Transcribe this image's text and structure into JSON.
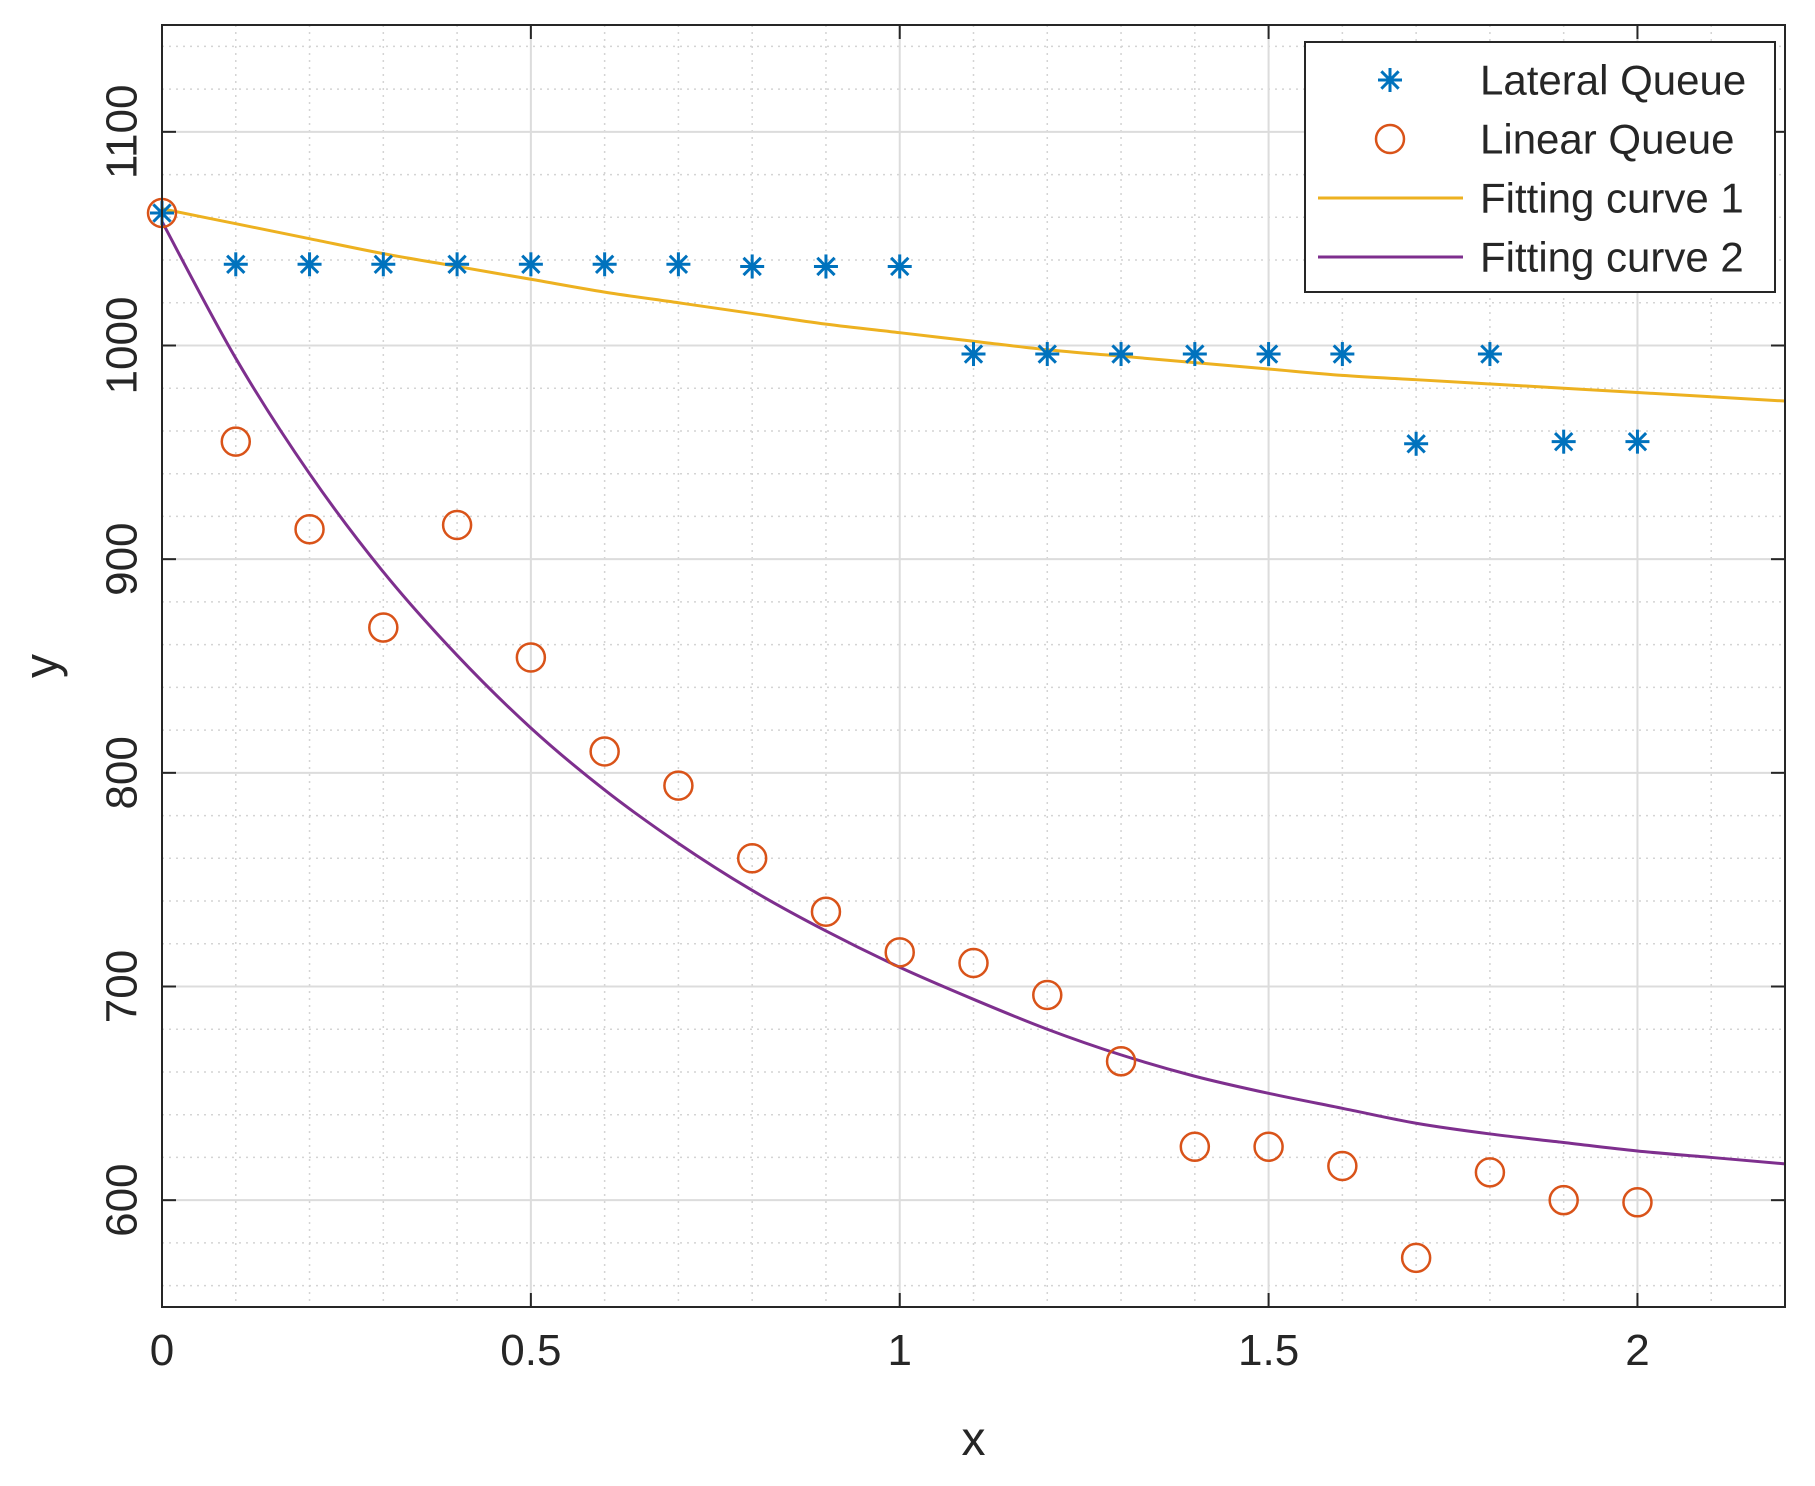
{
  "chart_data": {
    "type": "scatter",
    "title": "",
    "xlabel": "x",
    "ylabel": "y",
    "xlim": [
      0,
      2.2
    ],
    "ylim": [
      550,
      1150
    ],
    "grid": true,
    "minor_grid": true,
    "legend_position": "top-right",
    "x_ticks": [
      0,
      0.5,
      1,
      1.5,
      2
    ],
    "x_tick_labels": [
      "0",
      "0.5",
      "1",
      "1.5",
      "2"
    ],
    "y_ticks": [
      600,
      700,
      800,
      900,
      1000,
      1100
    ],
    "y_tick_labels": [
      "600",
      "700",
      "800",
      "900",
      "1000",
      "1100"
    ],
    "colors": {
      "lateral": "#0072BD",
      "linear": "#D95319",
      "fit1": "#EDB120",
      "fit2": "#7E2F8E"
    },
    "series": [
      {
        "name": "Lateral Queue",
        "kind": "scatter",
        "marker": "asterisk",
        "x": [
          0,
          0.1,
          0.2,
          0.3,
          0.4,
          0.5,
          0.6,
          0.7,
          0.8,
          0.9,
          1.0,
          1.1,
          1.2,
          1.3,
          1.4,
          1.5,
          1.6,
          1.7,
          1.8,
          1.9,
          2.0
        ],
        "y": [
          1062,
          1038,
          1038,
          1038,
          1038,
          1038,
          1038,
          1038,
          1037,
          1037,
          1037,
          996,
          996,
          996,
          996,
          996,
          996,
          954,
          996,
          955,
          955
        ]
      },
      {
        "name": "Linear Queue",
        "kind": "scatter",
        "marker": "circle",
        "x": [
          0,
          0.1,
          0.2,
          0.3,
          0.4,
          0.5,
          0.6,
          0.7,
          0.8,
          0.9,
          1.0,
          1.1,
          1.2,
          1.3,
          1.4,
          1.5,
          1.6,
          1.7,
          1.8,
          1.9,
          2.0
        ],
        "y": [
          1062,
          955,
          914,
          868,
          916,
          854,
          810,
          794,
          760,
          735,
          716,
          711,
          696,
          665,
          625,
          625,
          616,
          573,
          613,
          600,
          599
        ]
      },
      {
        "name": "Fitting curve 1",
        "kind": "line",
        "x": [
          0,
          0.1,
          0.2,
          0.3,
          0.4,
          0.5,
          0.6,
          0.7,
          0.8,
          0.9,
          1.0,
          1.1,
          1.2,
          1.3,
          1.4,
          1.5,
          1.6,
          1.7,
          1.8,
          1.9,
          2.0,
          2.1,
          2.2
        ],
        "y": [
          1064,
          1057,
          1050,
          1043,
          1037,
          1031,
          1025,
          1020,
          1015,
          1010,
          1006,
          1002,
          998,
          995,
          992,
          989,
          986,
          984,
          982,
          980,
          978,
          976,
          974
        ]
      },
      {
        "name": "Fitting curve 2",
        "kind": "line",
        "x": [
          0,
          0.1,
          0.2,
          0.3,
          0.4,
          0.5,
          0.6,
          0.7,
          0.8,
          0.9,
          1.0,
          1.1,
          1.2,
          1.3,
          1.4,
          1.5,
          1.6,
          1.7,
          1.8,
          1.9,
          2.0,
          2.1,
          2.2
        ],
        "y": [
          1058,
          994,
          940,
          894,
          855,
          821,
          792,
          767,
          745,
          726,
          709,
          694,
          680,
          668,
          658,
          650,
          643,
          636,
          631,
          627,
          623,
          620,
          617
        ]
      }
    ]
  }
}
